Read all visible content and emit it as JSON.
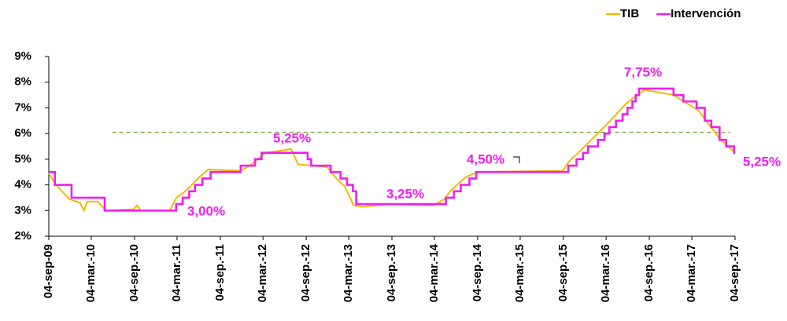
{
  "chart_data": {
    "type": "line",
    "series": [
      {
        "name": "TIB",
        "color": "#f5b800",
        "step": false,
        "x": [
          "2009-09-04",
          "2009-10-05",
          "2009-11-30",
          "2010-01-15",
          "2010-02-01",
          "2010-02-15",
          "2010-04-01",
          "2010-05-05",
          "2010-09-01",
          "2010-09-15",
          "2010-10-01",
          "2011-02-01",
          "2011-03-01",
          "2011-04-01",
          "2011-05-01",
          "2011-06-01",
          "2011-07-15",
          "2011-12-01",
          "2012-01-15",
          "2012-03-15",
          "2012-06-01",
          "2012-07-01",
          "2012-08-01",
          "2012-12-01",
          "2013-01-15",
          "2013-02-15",
          "2013-03-25",
          "2013-05-01",
          "2013-09-01",
          "2014-03-01",
          "2014-04-15",
          "2014-05-15",
          "2014-06-15",
          "2014-07-15",
          "2014-09-01",
          "2015-09-01",
          "2015-10-01",
          "2015-11-01",
          "2015-12-15",
          "2016-03-01",
          "2016-06-01",
          "2016-08-15",
          "2016-12-15",
          "2017-04-01",
          "2017-07-01",
          "2017-09-04"
        ],
        "values": [
          4.45,
          4.0,
          3.45,
          3.3,
          3.0,
          3.35,
          3.35,
          3.0,
          3.05,
          3.2,
          3.0,
          3.0,
          3.5,
          3.7,
          3.95,
          4.25,
          4.6,
          4.55,
          4.8,
          5.25,
          5.35,
          5.4,
          4.8,
          4.7,
          4.2,
          3.95,
          3.2,
          3.15,
          3.25,
          3.2,
          3.45,
          3.8,
          4.05,
          4.3,
          4.5,
          4.55,
          4.95,
          5.2,
          5.6,
          6.3,
          7.2,
          7.7,
          7.5,
          6.9,
          5.8,
          5.25
        ]
      },
      {
        "name": "Intervención",
        "color": "#f01ef0",
        "step": true,
        "x": [
          "2009-09-04",
          "2009-09-30",
          "2009-12-10",
          "2010-04-30",
          "2011-02-28",
          "2011-03-28",
          "2011-04-25",
          "2011-05-20",
          "2011-06-20",
          "2011-07-25",
          "2011-11-30",
          "2012-01-30",
          "2012-02-27",
          "2012-09-10",
          "2012-09-25",
          "2012-12-17",
          "2013-01-28",
          "2013-02-25",
          "2013-03-22",
          "2013-04-05",
          "2014-04-22",
          "2014-05-26",
          "2014-06-24",
          "2014-07-31",
          "2014-08-29",
          "2015-09-25",
          "2015-10-30",
          "2015-11-27",
          "2015-12-18",
          "2016-01-29",
          "2016-02-26",
          "2016-03-18",
          "2016-04-15",
          "2016-05-13",
          "2016-06-03",
          "2016-06-24",
          "2016-07-08",
          "2016-07-22",
          "2016-12-16",
          "2017-01-27",
          "2017-03-24",
          "2017-04-28",
          "2017-05-26",
          "2017-06-30",
          "2017-07-28",
          "2017-08-31",
          "2017-09-04"
        ],
        "values": [
          4.5,
          4.0,
          3.5,
          3.0,
          3.25,
          3.5,
          3.75,
          4.0,
          4.25,
          4.5,
          4.75,
          5.0,
          5.25,
          5.0,
          4.75,
          4.5,
          4.25,
          4.0,
          3.75,
          3.25,
          3.5,
          3.75,
          4.0,
          4.25,
          4.5,
          4.75,
          5.0,
          5.25,
          5.5,
          5.75,
          6.0,
          6.25,
          6.5,
          6.75,
          7.0,
          7.25,
          7.5,
          7.75,
          7.5,
          7.25,
          7.0,
          6.5,
          6.25,
          5.75,
          5.5,
          5.25,
          5.25
        ]
      }
    ],
    "xlim": [
      "2009-09-04",
      "2017-09-04"
    ],
    "xticks": [
      {
        "value": "2009-09-04",
        "label": "04-sep-09"
      },
      {
        "value": "2010-03-04",
        "label": "04-mar.-10"
      },
      {
        "value": "2010-09-04",
        "label": "04-sep.-10"
      },
      {
        "value": "2011-03-04",
        "label": "04-mar.-11"
      },
      {
        "value": "2011-09-04",
        "label": "04-sep.-11"
      },
      {
        "value": "2012-03-04",
        "label": "04-mar.-12"
      },
      {
        "value": "2012-09-04",
        "label": "04-sep.-12"
      },
      {
        "value": "2013-03-04",
        "label": "04-mar.-13"
      },
      {
        "value": "2013-09-04",
        "label": "04-sep.-13"
      },
      {
        "value": "2014-03-04",
        "label": "04-mar.-14"
      },
      {
        "value": "2014-09-04",
        "label": "04-sep.-14"
      },
      {
        "value": "2015-03-04",
        "label": "04-mar.-15"
      },
      {
        "value": "2015-09-04",
        "label": "04-sep.-15"
      },
      {
        "value": "2016-03-04",
        "label": "04-mar.-16"
      },
      {
        "value": "2016-09-04",
        "label": "04-sep.-16"
      },
      {
        "value": "2017-03-04",
        "label": "04-mar.-17"
      },
      {
        "value": "2017-09-04",
        "label": "04-sep.-17"
      }
    ],
    "ylim": [
      2,
      9
    ],
    "yticks": [
      {
        "value": 2,
        "label": "2%"
      },
      {
        "value": 3,
        "label": "3%"
      },
      {
        "value": 4,
        "label": "4%"
      },
      {
        "value": 5,
        "label": "5%"
      },
      {
        "value": 6,
        "label": "6%"
      },
      {
        "value": 7,
        "label": "7%"
      },
      {
        "value": 8,
        "label": "8%"
      },
      {
        "value": 9,
        "label": "9%"
      }
    ],
    "reference_line": {
      "value": 6.05,
      "x": [
        "2010-06-01",
        "2017-08-15"
      ],
      "color": "#70a03a"
    },
    "annotations": [
      "3,00%",
      "5,25%",
      "3,25%",
      "4,50%",
      "7,75%",
      "5,25%"
    ],
    "legend": "top-right"
  }
}
